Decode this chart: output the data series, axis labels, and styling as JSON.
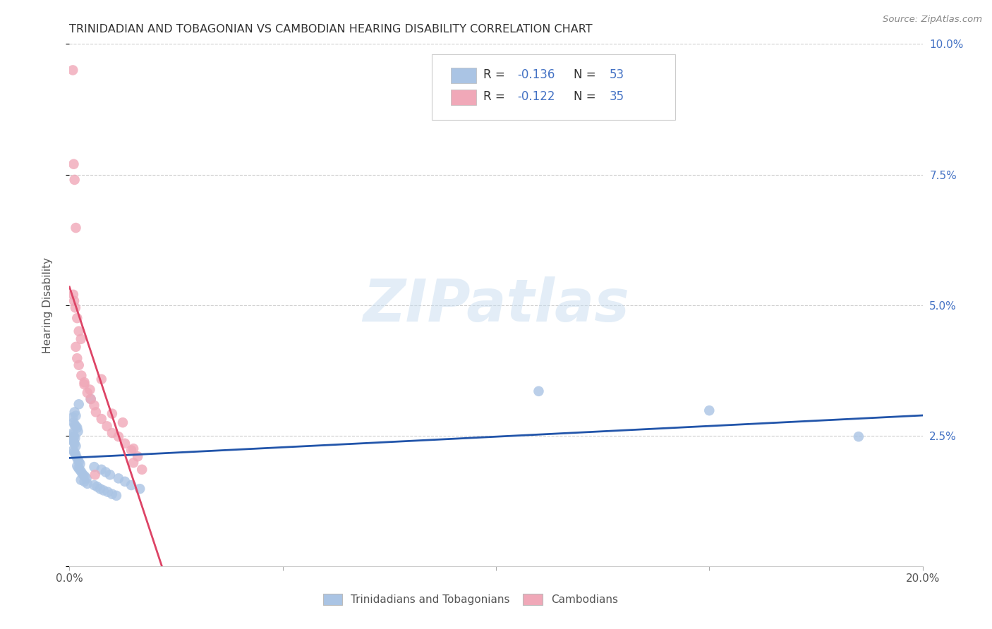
{
  "title": "TRINIDADIAN AND TOBAGONIAN VS CAMBODIAN HEARING DISABILITY CORRELATION CHART",
  "source": "Source: ZipAtlas.com",
  "ylabel": "Hearing Disability",
  "x_min": 0.0,
  "x_max": 0.2,
  "y_min": 0.0,
  "y_max": 0.1,
  "blue_color": "#aac4e4",
  "pink_color": "#f0a8b8",
  "blue_line_color": "#2255aa",
  "pink_line_color": "#dd4466",
  "background_color": "#ffffff",
  "grid_color": "#cccccc",
  "watermark_text": "ZIPatlas",
  "r_tri": -0.136,
  "n_tri": 53,
  "r_cam": -0.122,
  "n_cam": 35,
  "right_y_tick_color": "#4472c4",
  "legend_color": "#4472c4",
  "legend_text_color": "#333333",
  "trinidadian_x": [
    0.0008,
    0.001,
    0.0012,
    0.0015,
    0.0008,
    0.0009,
    0.0011,
    0.0013,
    0.0007,
    0.001,
    0.0012,
    0.0015,
    0.0018,
    0.002,
    0.0009,
    0.0011,
    0.0014,
    0.0016,
    0.0019,
    0.0022,
    0.0025,
    0.0012,
    0.0015,
    0.0018,
    0.0021,
    0.0024,
    0.0028,
    0.0032,
    0.0036,
    0.004,
    0.0022,
    0.0027,
    0.0035,
    0.0042,
    0.005,
    0.0058,
    0.0065,
    0.0072,
    0.008,
    0.009,
    0.01,
    0.011,
    0.0058,
    0.0075,
    0.0085,
    0.0095,
    0.0115,
    0.013,
    0.0145,
    0.0165,
    0.11,
    0.15,
    0.185
  ],
  "trinidadian_y": [
    0.0285,
    0.0275,
    0.027,
    0.0268,
    0.0255,
    0.0252,
    0.0248,
    0.0245,
    0.0242,
    0.0238,
    0.0235,
    0.023,
    0.0265,
    0.0258,
    0.0222,
    0.0218,
    0.0215,
    0.021,
    0.0205,
    0.02,
    0.0196,
    0.0295,
    0.0288,
    0.0192,
    0.0188,
    0.0185,
    0.018,
    0.0175,
    0.0172,
    0.0168,
    0.031,
    0.0165,
    0.0162,
    0.0158,
    0.032,
    0.0155,
    0.0152,
    0.0148,
    0.0145,
    0.0142,
    0.0138,
    0.0135,
    0.019,
    0.0185,
    0.018,
    0.0175,
    0.0168,
    0.0162,
    0.0155,
    0.0148,
    0.0335,
    0.0298,
    0.0248
  ],
  "cambodian_x": [
    0.0008,
    0.001,
    0.0012,
    0.0015,
    0.0009,
    0.0011,
    0.0014,
    0.0018,
    0.0022,
    0.0027,
    0.0015,
    0.0018,
    0.0022,
    0.0028,
    0.0035,
    0.0042,
    0.005,
    0.0058,
    0.0035,
    0.0048,
    0.0062,
    0.0075,
    0.0088,
    0.01,
    0.0115,
    0.013,
    0.0145,
    0.016,
    0.0075,
    0.01,
    0.0125,
    0.015,
    0.006,
    0.015,
    0.017
  ],
  "cambodian_y": [
    0.095,
    0.077,
    0.074,
    0.0648,
    0.052,
    0.0508,
    0.0495,
    0.0475,
    0.045,
    0.0435,
    0.042,
    0.0398,
    0.0385,
    0.0365,
    0.0348,
    0.0332,
    0.032,
    0.0308,
    0.0352,
    0.0338,
    0.0295,
    0.0282,
    0.0268,
    0.0255,
    0.0248,
    0.0235,
    0.0222,
    0.021,
    0.0358,
    0.0292,
    0.0275,
    0.0198,
    0.0175,
    0.0225,
    0.0185
  ]
}
